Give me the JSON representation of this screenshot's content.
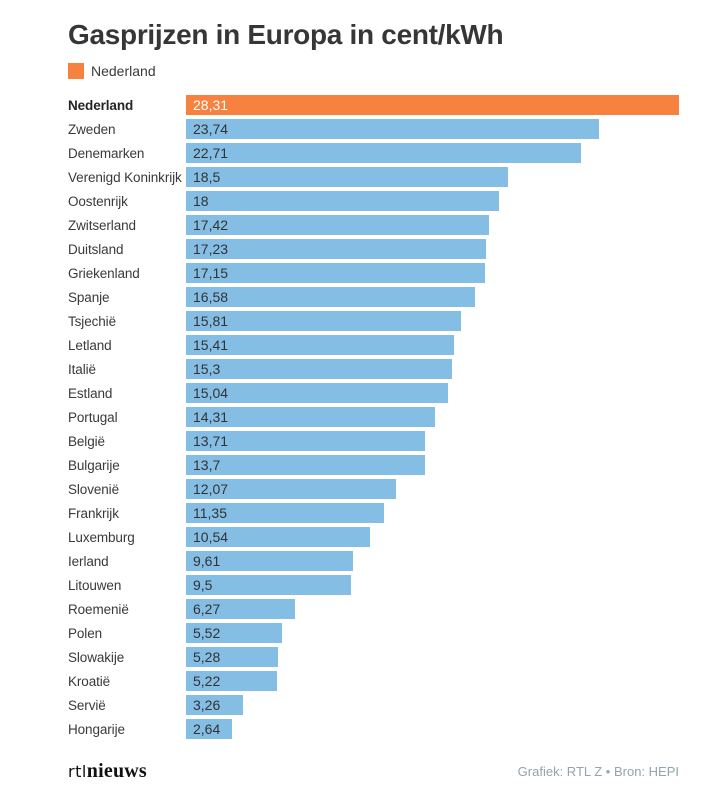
{
  "title": "Gasprijzen in Europa in cent/kWh",
  "legend": {
    "label": "Nederland"
  },
  "colors": {
    "highlight": "#F78240",
    "bar": "#85BEE4",
    "title_text": "#363636",
    "label_text": "#3A3A3A",
    "value_text_on_blue": "#333333",
    "value_text_on_highlight": "#FFFFFF",
    "credit_text": "#94A3AD"
  },
  "chart_data": {
    "type": "bar",
    "orientation": "horizontal",
    "title": "Gasprijzen in Europa in cent/kWh",
    "unit": "cent/kWh",
    "legend_entries": [
      "Nederland"
    ],
    "legend_position": "top-left",
    "grid": false,
    "xlim": [
      0,
      28.31
    ],
    "highlighted_category": "Nederland",
    "categories": [
      "Nederland",
      "Zweden",
      "Denemarken",
      "Verenigd Koninkrijk",
      "Oostenrijk",
      "Zwitserland",
      "Duitsland",
      "Griekenland",
      "Spanje",
      "Tsjechië",
      "Letland",
      "Italië",
      "Estland",
      "Portugal",
      "België",
      "Bulgarije",
      "Slovenië",
      "Frankrijk",
      "Luxemburg",
      "Ierland",
      "Litouwen",
      "Roemenië",
      "Polen",
      "Slowakije",
      "Kroatië",
      "Servië",
      "Hongarije"
    ],
    "values": [
      28.31,
      23.74,
      22.71,
      18.5,
      18,
      17.42,
      17.23,
      17.15,
      16.58,
      15.81,
      15.41,
      15.3,
      15.04,
      14.31,
      13.71,
      13.7,
      12.07,
      11.35,
      10.54,
      9.61,
      9.5,
      6.27,
      5.52,
      5.28,
      5.22,
      3.26,
      2.64
    ],
    "value_labels": [
      "28,31",
      "23,74",
      "22,71",
      "18,5",
      "18",
      "17,42",
      "17,23",
      "17,15",
      "16,58",
      "15,81",
      "15,41",
      "15,3",
      "15,04",
      "14,31",
      "13,71",
      "13,7",
      "12,07",
      "11,35",
      "10,54",
      "9,61",
      "9,5",
      "6,27",
      "5,52",
      "5,28",
      "5,22",
      "3,26",
      "2,64"
    ]
  },
  "footer": {
    "logo_rtl": "rtl",
    "logo_nieuws": "nieuws",
    "credit": "Grafiek: RTL Z • Bron: HEPI"
  }
}
